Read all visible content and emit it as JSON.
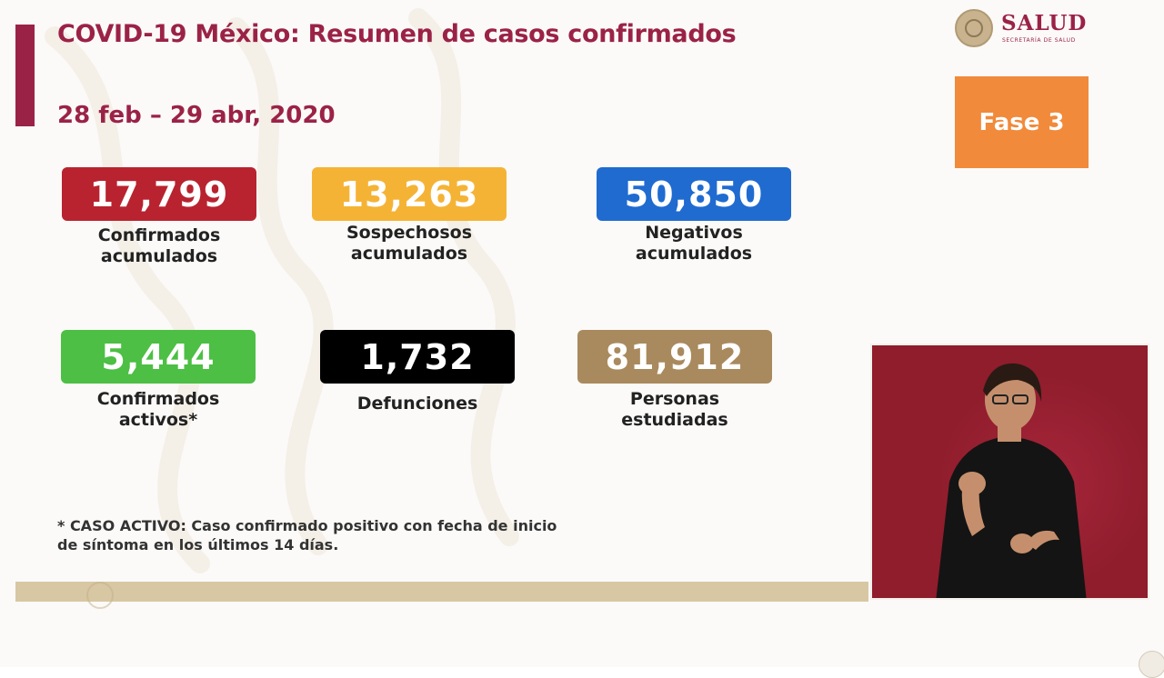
{
  "header": {
    "title": "COVID-19 México: Resumen de casos confirmados",
    "date_range": "28 feb – 29 abr, 2020"
  },
  "logo": {
    "name": "SALUD",
    "subtitle": "SECRETARÍA DE SALUD"
  },
  "phase_badge": "Fase 3",
  "stats": [
    {
      "value": "17,799",
      "label_line1": "Confirmados",
      "label_line2": "acumulados",
      "color": "#b8232f"
    },
    {
      "value": "13,263",
      "label_line1": "Sospechosos",
      "label_line2": "acumulados",
      "color": "#f5b335"
    },
    {
      "value": "50,850",
      "label_line1": "Negativos",
      "label_line2": "acumulados",
      "color": "#1f6bd0"
    },
    {
      "value": "5,444",
      "label_line1": "Confirmados",
      "label_line2": "activos*",
      "color": "#4cbf44"
    },
    {
      "value": "1,732",
      "label_line1": "Defunciones",
      "label_line2": "",
      "color": "#000000"
    },
    {
      "value": "81,912",
      "label_line1": "Personas",
      "label_line2": "estudiadas",
      "color": "#a98a5e"
    }
  ],
  "footnote": {
    "line1": "* CASO ACTIVO: Caso confirmado positivo con fecha de inicio",
    "line2": "de síntoma en los últimos 14 días."
  },
  "colors": {
    "brand": "#9b2247",
    "phase": "#f18a3a",
    "interpreter_background": "#8f1d2c",
    "bottom_bar": "#d8c7a3"
  }
}
